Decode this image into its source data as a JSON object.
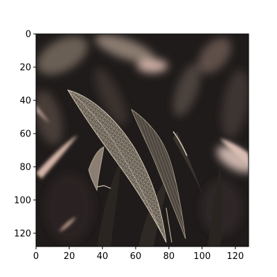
{
  "chart_data": {
    "type": "image",
    "title": "",
    "xlabel": "",
    "ylabel": "",
    "xlim": [
      0,
      128
    ],
    "ylim": [
      128,
      0
    ],
    "x_ticks": [
      "0",
      "20",
      "40",
      "60",
      "80",
      "100",
      "120"
    ],
    "y_ticks": [
      "0",
      "20",
      "40",
      "60",
      "80",
      "100",
      "120"
    ],
    "image_description_colors": {
      "background_dark": "#1f1b1a",
      "leaf_mid": "#5a524a",
      "leaf_light": "#b8ab98",
      "highlight_pink": "#d8c0b8"
    }
  }
}
